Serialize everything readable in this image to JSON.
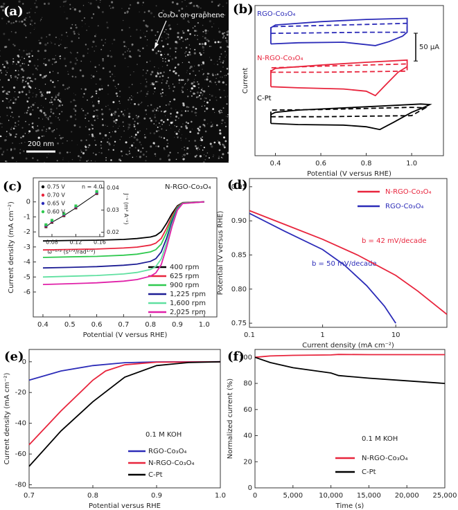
{
  "image_panel": {
    "panel_label": "(a)",
    "annotation": "Co₃O₄ on graphene",
    "scale_bar": "200 nm"
  },
  "chart_data": [
    {
      "type": "line",
      "panel_label": "(b)",
      "xlabel": "Potential (V versus RHE)",
      "ylabel": "Current",
      "xlim": [
        0.31,
        1.14
      ],
      "xticks": [
        0.4,
        0.6,
        0.8,
        {
          "value": 1,
          "label": "1.0"
        }
      ],
      "ylim": [
        0,
        270
      ],
      "scale_bar": {
        "value": 50,
        "label": "50 μA"
      },
      "series": [
        {
          "name": "RGO-Co₃O₄",
          "color": "#2b2bb8",
          "x": [
            0.38,
            0.5,
            0.7,
            0.84,
            0.9,
            0.96,
            0.98,
            0.98,
            0.8,
            0.6,
            0.4,
            0.38,
            0.38
          ],
          "values": [
            201,
            203,
            204,
            198,
            205,
            215,
            222,
            247,
            245,
            241,
            235,
            230,
            201
          ]
        },
        {
          "color": "#2b2bb8",
          "dashed": true,
          "x": [
            0.38,
            0.6,
            0.8,
            0.98,
            0.98,
            0.8,
            0.6,
            0.38,
            0.38
          ],
          "values": [
            220,
            221,
            222,
            222,
            238,
            236,
            234,
            232,
            220
          ]
        },
        {
          "name": "N-RGO-Co₃O₄",
          "color": "#e8243c",
          "x": [
            0.38,
            0.5,
            0.7,
            0.8,
            0.84,
            0.88,
            0.94,
            0.98,
            0.98,
            0.8,
            0.6,
            0.4,
            0.38,
            0.38
          ],
          "values": [
            124,
            122,
            120,
            116,
            108,
            125,
            150,
            160,
            172,
            168,
            163,
            157,
            152,
            124
          ]
        },
        {
          "color": "#e8243c",
          "dashed": true,
          "x": [
            0.38,
            0.6,
            0.8,
            0.98,
            0.98,
            0.8,
            0.6,
            0.38,
            0.38
          ],
          "values": [
            150,
            150,
            151,
            152,
            165,
            163,
            161,
            158,
            150
          ]
        },
        {
          "name": "C-Pt",
          "color": "#000000",
          "x": [
            0.38,
            0.5,
            0.7,
            0.8,
            0.86,
            0.92,
            1.0,
            1.06,
            1.08,
            1.04,
            0.9,
            0.7,
            0.5,
            0.4,
            0.38,
            0.38
          ],
          "values": [
            58,
            56,
            55,
            52,
            47,
            60,
            78,
            88,
            92,
            93,
            90,
            86,
            82,
            78,
            74,
            58
          ]
        },
        {
          "color": "#000000",
          "dashed": true,
          "x": [
            0.38,
            0.6,
            0.8,
            1.0,
            1.06,
            1.0,
            0.8,
            0.6,
            0.38,
            0.38
          ],
          "values": [
            70,
            70,
            71,
            72,
            86,
            87,
            85,
            83,
            82,
            70
          ]
        }
      ]
    },
    {
      "type": "line",
      "panel_label": "(c)",
      "title": "N-RGO-Co₃O₄",
      "xlabel": "Potential (V versus RHE)",
      "ylabel": "Current density (mA cm⁻²)",
      "xlim": [
        0.364,
        1.047
      ],
      "xticks": [
        0.4,
        0.5,
        0.6,
        0.7,
        0.8,
        0.9,
        {
          "value": 1,
          "label": "1.0"
        }
      ],
      "ylim": [
        -7.66,
        1.6
      ],
      "yticks": [
        -6,
        -5,
        -4,
        -3,
        -2,
        -1,
        0
      ],
      "x": [
        0.4,
        0.5,
        0.6,
        0.7,
        0.75,
        0.8,
        0.82,
        0.84,
        0.86,
        0.88,
        0.9,
        0.92,
        1.0
      ],
      "series": [
        {
          "name": "400 rpm",
          "color": "#000000",
          "values": [
            -2.6,
            -2.57,
            -2.55,
            -2.5,
            -2.44,
            -2.34,
            -2.24,
            -1.98,
            -1.43,
            -0.78,
            -0.26,
            -0.05,
            0
          ]
        },
        {
          "name": "625 rpm",
          "color": "#e8243c",
          "values": [
            -3.2,
            -3.17,
            -3.14,
            -3.07,
            -3.01,
            -2.88,
            -2.75,
            -2.43,
            -1.76,
            -0.96,
            -0.32,
            -0.06,
            0
          ]
        },
        {
          "name": "900 rpm",
          "color": "#2fc94f",
          "values": [
            -3.7,
            -3.66,
            -3.63,
            -3.55,
            -3.48,
            -3.33,
            -3.18,
            -2.81,
            -2.04,
            -1.11,
            -0.37,
            -0.07,
            0
          ]
        },
        {
          "name": "1,225 rpm",
          "color": "#1c1c94",
          "values": [
            -4.4,
            -4.36,
            -4.31,
            -4.22,
            -4.14,
            -3.96,
            -3.78,
            -3.34,
            -2.42,
            -1.32,
            -0.44,
            -0.09,
            0
          ]
        },
        {
          "name": "1,600 rpm",
          "color": "#5fe0a0",
          "values": [
            -5.0,
            -4.95,
            -4.9,
            -4.8,
            -4.7,
            -4.5,
            -4.3,
            -3.8,
            -2.75,
            -1.5,
            -0.5,
            -0.1,
            0
          ]
        },
        {
          "name": "2,025 rpm",
          "color": "#e020a8",
          "values": [
            -5.5,
            -5.45,
            -5.39,
            -5.28,
            -5.17,
            -4.95,
            -4.73,
            -4.18,
            -3.03,
            -1.65,
            -0.55,
            -0.11,
            0
          ]
        }
      ]
    },
    {
      "type": "scatter",
      "annotation": "n = 4.0",
      "xlabel": "ω⁻¹ᐟ² (s¹ᐟ²/rad¹ᐟ²)",
      "ylabel": "J⁻¹ (m² A⁻¹)",
      "yaxis_side": "right",
      "xlim": [
        0.058,
        0.167
      ],
      "xticks": [
        0.08,
        0.12,
        0.16
      ],
      "ylim": [
        0.018,
        0.043
      ],
      "yticks": [
        0.02,
        0.03,
        0.04
      ],
      "x": [
        0.07,
        0.08,
        0.1,
        0.12,
        0.155
      ],
      "series": [
        {
          "name": "0.75 V",
          "color": "#000000",
          "line": true,
          "values": [
            0.0225,
            0.0245,
            0.0275,
            0.031,
            0.0375
          ]
        },
        {
          "name": "0.70 V",
          "color": "#e8243c",
          "values": [
            0.0228,
            0.0248,
            0.0278,
            0.0313,
            0.0378
          ]
        },
        {
          "name": "0.65 V",
          "color": "#2b2bb8",
          "values": [
            0.0231,
            0.0251,
            0.0281,
            0.0316,
            0.0381
          ]
        },
        {
          "name": "0.60 V",
          "color": "#2fc94f",
          "values": [
            0.0234,
            0.0254,
            0.0284,
            0.0319,
            0.0384
          ]
        }
      ]
    },
    {
      "type": "line",
      "panel_label": "(d)",
      "xlabel": "Current density (mA cm⁻²)",
      "ylabel": "Potential (V versus RHE)",
      "xscale": "log",
      "xlim": [
        0.1,
        50
      ],
      "xticks": [
        0.1,
        1,
        10
      ],
      "ylim": [
        0.744,
        0.962
      ],
      "yticks": [
        0.75,
        {
          "value": 0.8,
          "label": "0.80"
        },
        0.85,
        {
          "value": 0.9,
          "label": "0.90"
        },
        0.95
      ],
      "annotations": [
        "b = 42 mV/decade",
        "b = 50 mV/decade"
      ],
      "series": [
        {
          "name": "N-RGO-Co₃O₄",
          "color": "#e8243c",
          "x": [
            0.1,
            0.3,
            1,
            3,
            10,
            20,
            50
          ],
          "values": [
            0.915,
            0.895,
            0.873,
            0.85,
            0.82,
            0.797,
            0.763
          ]
        },
        {
          "name": "RGO-Co₃O₄",
          "color": "#2b2bb8",
          "x": [
            0.1,
            0.3,
            1,
            2,
            4,
            7,
            10
          ],
          "values": [
            0.911,
            0.885,
            0.858,
            0.835,
            0.805,
            0.775,
            0.75
          ]
        }
      ]
    },
    {
      "type": "line",
      "panel_label": "(e)",
      "annotation": "0.1 M KOH",
      "xlabel": "Potential versus RHE",
      "ylabel": "Current density (mA cm⁻²)",
      "xlim": [
        0.7,
        1.0
      ],
      "xticks": [
        0.7,
        0.8,
        0.9,
        {
          "value": 1,
          "label": "1.0"
        }
      ],
      "ylim": [
        -82,
        8
      ],
      "yticks": [
        -80,
        -60,
        -40,
        -20,
        0
      ],
      "series": [
        {
          "name": "RGO-Co₃O₄",
          "color": "#2b2bb8",
          "x": [
            0.7,
            0.75,
            0.8,
            0.85,
            0.9,
            1.0
          ],
          "values": [
            -12,
            -6,
            -2.5,
            -0.6,
            -0.1,
            0
          ]
        },
        {
          "name": "N-RGO-Co₃O₄",
          "color": "#e8243c",
          "x": [
            0.7,
            0.75,
            0.8,
            0.82,
            0.85,
            0.9,
            1.0
          ],
          "values": [
            -54,
            -32,
            -12,
            -6,
            -2,
            -0.3,
            0
          ]
        },
        {
          "name": "C-Pt",
          "color": "#000000",
          "x": [
            0.7,
            0.75,
            0.8,
            0.85,
            0.9,
            0.95,
            1.0
          ],
          "values": [
            -68,
            -45,
            -26,
            -10,
            -2.5,
            -0.5,
            0
          ]
        }
      ]
    },
    {
      "type": "line",
      "panel_label": "(f)",
      "annotation": "0.1 M KOH",
      "xlabel": "Time (s)",
      "ylabel": "Normalized current (%)",
      "xlim": [
        0,
        25000
      ],
      "xticks": [
        0,
        {
          "value": 5000,
          "label": "5,000"
        },
        {
          "value": 10000,
          "label": "10,000"
        },
        {
          "value": 15000,
          "label": "15,000"
        },
        {
          "value": 20000,
          "label": "20,000"
        },
        {
          "value": 25000,
          "label": "25,000"
        }
      ],
      "ylim": [
        0,
        106
      ],
      "yticks": [
        0,
        20,
        40,
        60,
        80,
        100
      ],
      "x": [
        0,
        2000,
        5000,
        10000,
        11000,
        15000,
        20000,
        25000
      ],
      "series": [
        {
          "name": "N-RGO-Co₃O₄",
          "color": "#e8243c",
          "values": [
            100,
            101,
            101.5,
            101.8,
            102.2,
            102,
            102,
            102
          ]
        },
        {
          "name": "C-Pt",
          "color": "#000000",
          "values": [
            100,
            96,
            92,
            88,
            86,
            84,
            82,
            80
          ]
        }
      ]
    }
  ]
}
